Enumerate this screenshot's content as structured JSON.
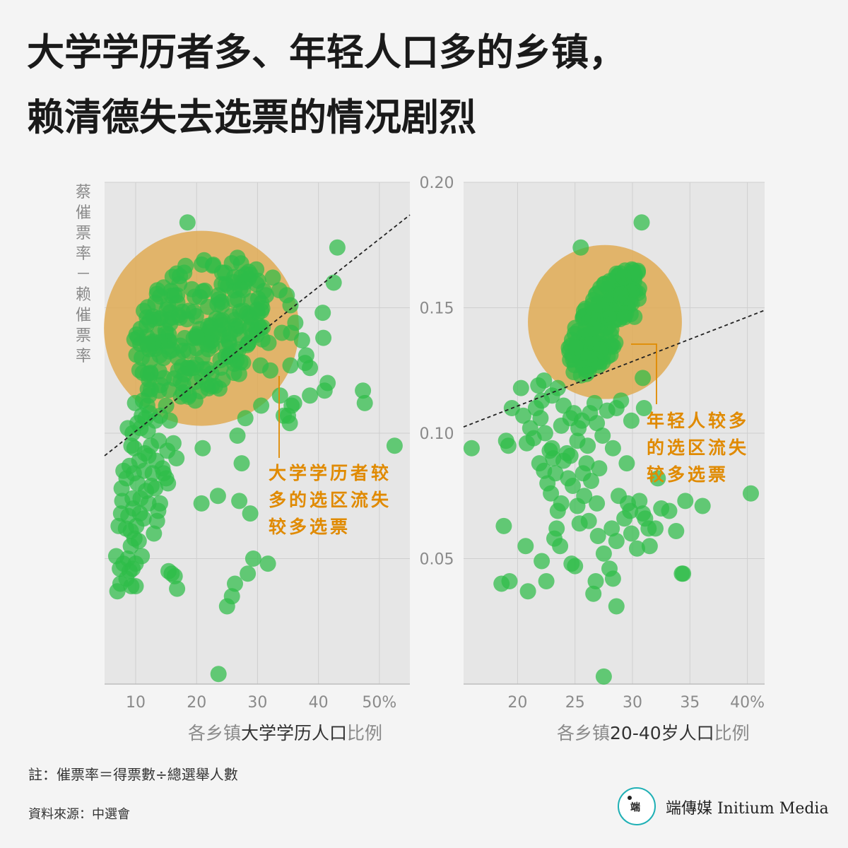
{
  "title": {
    "line1": "大学学历者多、年轻人口多的乡镇，",
    "line2": "赖清德失去选票的情况剧烈"
  },
  "y_axis_label": "蔡催票率－赖催票率",
  "annotations": {
    "left": "大学学历者较多的选区流失较多选票",
    "right": "年轻人较多的选区流失较多选票"
  },
  "footnote": "註：催票率＝得票數÷總選舉人數",
  "source": "資料來源：中選會",
  "brand": {
    "logo_text": "端",
    "name": "端傳媒 Initium Media"
  },
  "colors": {
    "background": "#f4f4f4",
    "plot_bg": "#e6e6e6",
    "point_green": "#2ebd48",
    "highlight_circle": "#e0a74b",
    "annotation": "#e08a00",
    "trend_line": "#222222"
  },
  "chart_data": [
    {
      "type": "scatter",
      "x_label_gray_prefix": "各乡镇",
      "x_label_dark": "大学学历人口",
      "x_label_gray_suffix": "比例",
      "xticks": [
        "10",
        "20",
        "30",
        "40",
        "50%"
      ],
      "xlim": [
        4.9,
        55
      ],
      "ylim": [
        0,
        0.2
      ],
      "yticks": [
        "0.20",
        "0.15",
        "0.10",
        "0.05"
      ],
      "grid": true,
      "trend_line": {
        "x": [
          4.9,
          55
        ],
        "y": [
          0.091,
          0.187
        ]
      },
      "highlight": {
        "cx": 20.8,
        "cy": 0.1418,
        "r_x_units": 16.0
      },
      "points": [
        [
          18.5,
          0.184
        ],
        [
          43.1,
          0.174
        ],
        [
          42.5,
          0.16
        ],
        [
          40.8,
          0.138
        ],
        [
          47.3,
          0.117
        ],
        [
          47.6,
          0.112
        ],
        [
          52.5,
          0.095
        ],
        [
          41.5,
          0.12
        ],
        [
          41.0,
          0.117
        ],
        [
          33.7,
          0.115
        ],
        [
          35.6,
          0.111
        ],
        [
          35.3,
          0.104
        ],
        [
          35.0,
          0.107
        ],
        [
          36.0,
          0.112
        ],
        [
          34.3,
          0.107
        ],
        [
          32.1,
          0.125
        ],
        [
          37.8,
          0.128
        ],
        [
          38.6,
          0.126
        ],
        [
          38.0,
          0.131
        ],
        [
          35.4,
          0.127
        ],
        [
          35.5,
          0.14
        ],
        [
          34.0,
          0.14
        ],
        [
          37.3,
          0.137
        ],
        [
          40.7,
          0.148
        ],
        [
          38.6,
          0.115
        ],
        [
          30.5,
          0.127
        ],
        [
          31.8,
          0.136
        ],
        [
          31.4,
          0.155
        ],
        [
          35.4,
          0.151
        ],
        [
          34.8,
          0.155
        ],
        [
          36.2,
          0.144
        ],
        [
          33.6,
          0.157
        ],
        [
          32.5,
          0.162
        ],
        [
          28.0,
          0.106
        ],
        [
          26.7,
          0.099
        ],
        [
          27.4,
          0.088
        ],
        [
          21.0,
          0.094
        ],
        [
          30.6,
          0.111
        ],
        [
          20.8,
          0.072
        ],
        [
          23.5,
          0.075
        ],
        [
          27.0,
          0.073
        ],
        [
          28.8,
          0.068
        ],
        [
          29.3,
          0.05
        ],
        [
          31.7,
          0.048
        ],
        [
          28.4,
          0.044
        ],
        [
          26.3,
          0.04
        ],
        [
          25.8,
          0.035
        ],
        [
          25.0,
          0.031
        ],
        [
          23.6,
          0.004
        ],
        [
          16.4,
          0.043
        ],
        [
          16.8,
          0.038
        ],
        [
          15.4,
          0.045
        ],
        [
          15.9,
          0.044
        ],
        [
          13.0,
          0.06
        ],
        [
          13.5,
          0.065
        ],
        [
          14.0,
          0.072
        ],
        [
          13.2,
          0.078
        ],
        [
          14.6,
          0.084
        ],
        [
          15.0,
          0.082
        ],
        [
          16.7,
          0.09
        ],
        [
          16.2,
          0.096
        ],
        [
          15.2,
          0.093
        ],
        [
          13.8,
          0.097
        ],
        [
          12.0,
          0.101
        ],
        [
          11.6,
          0.106
        ],
        [
          11.9,
          0.111
        ],
        [
          11.0,
          0.107
        ],
        [
          10.3,
          0.104
        ],
        [
          9.5,
          0.1
        ],
        [
          9.8,
          0.094
        ],
        [
          10.6,
          0.089
        ],
        [
          11.5,
          0.092
        ],
        [
          12.5,
          0.095
        ],
        [
          12.8,
          0.084
        ],
        [
          11.7,
          0.077
        ],
        [
          10.7,
          0.068
        ],
        [
          10.1,
          0.063
        ],
        [
          9.2,
          0.061
        ],
        [
          9.8,
          0.058
        ],
        [
          10.5,
          0.057
        ],
        [
          11.0,
          0.051
        ],
        [
          10.0,
          0.048
        ],
        [
          9.5,
          0.046
        ],
        [
          8.5,
          0.042
        ],
        [
          7.5,
          0.04
        ],
        [
          7.0,
          0.037
        ],
        [
          6.8,
          0.051
        ],
        [
          7.4,
          0.046
        ],
        [
          8.0,
          0.048
        ],
        [
          9.0,
          0.045
        ],
        [
          8.7,
          0.05
        ],
        [
          9.2,
          0.055
        ],
        [
          8.8,
          0.067
        ],
        [
          7.8,
          0.073
        ],
        [
          8.5,
          0.082
        ],
        [
          9.0,
          0.087
        ],
        [
          9.3,
          0.095
        ],
        [
          8.7,
          0.102
        ],
        [
          9.9,
          0.112
        ],
        [
          11.2,
          0.113
        ],
        [
          12.3,
          0.108
        ],
        [
          13.2,
          0.105
        ],
        [
          14.0,
          0.107
        ],
        [
          15.0,
          0.111
        ],
        [
          15.6,
          0.105
        ],
        [
          12.2,
          0.115
        ],
        [
          10.8,
          0.102
        ],
        [
          11.4,
          0.085
        ],
        [
          12.6,
          0.079
        ],
        [
          14.4,
          0.086
        ],
        [
          8.0,
          0.085
        ],
        [
          7.6,
          0.068
        ],
        [
          7.2,
          0.063
        ],
        [
          9.3,
          0.039
        ],
        [
          10.0,
          0.039
        ],
        [
          7.7,
          0.078
        ],
        [
          12.1,
          0.072
        ],
        [
          13.7,
          0.069
        ],
        [
          15.3,
          0.08
        ],
        [
          10.3,
          0.08
        ],
        [
          9.5,
          0.074
        ],
        [
          11.3,
          0.066
        ],
        [
          9.6,
          0.07
        ],
        [
          10.8,
          0.074
        ],
        [
          8.4,
          0.062
        ],
        [
          13.4,
          0.089
        ],
        [
          12.1,
          0.091
        ],
        [
          9.7,
          0.084
        ]
      ],
      "cluster_seed": 11
    },
    {
      "type": "scatter",
      "x_label_gray_prefix": "各乡镇",
      "x_label_dark": "20-40岁人口",
      "x_label_gray_suffix": "比例",
      "xticks": [
        "20",
        "25",
        "30",
        "35",
        "40%"
      ],
      "xlim": [
        15.3,
        41.5
      ],
      "ylim": [
        0,
        0.2
      ],
      "yticks": [
        "0.20",
        "0.15",
        "0.10",
        "0.05"
      ],
      "grid": true,
      "trend_line": {
        "x": [
          15.3,
          41.5
        ],
        "y": [
          0.1025,
          0.149
        ]
      },
      "highlight": {
        "cx": 27.6,
        "cy": 0.1443,
        "r_x_units": 6.7
      },
      "points": [
        [
          30.8,
          0.184
        ],
        [
          25.5,
          0.174
        ],
        [
          30.9,
          0.122
        ],
        [
          31.0,
          0.11
        ],
        [
          29.9,
          0.105
        ],
        [
          40.3,
          0.076
        ],
        [
          36.1,
          0.071
        ],
        [
          34.6,
          0.073
        ],
        [
          33.8,
          0.061
        ],
        [
          34.3,
          0.044
        ],
        [
          31.5,
          0.055
        ],
        [
          32.0,
          0.062
        ],
        [
          32.5,
          0.07
        ],
        [
          30.9,
          0.068
        ],
        [
          31.4,
          0.062
        ],
        [
          29.8,
          0.069
        ],
        [
          29.3,
          0.066
        ],
        [
          29.9,
          0.06
        ],
        [
          30.4,
          0.054
        ],
        [
          28.8,
          0.075
        ],
        [
          29.6,
          0.072
        ],
        [
          28.2,
          0.062
        ],
        [
          28.6,
          0.057
        ],
        [
          28.0,
          0.046
        ],
        [
          28.3,
          0.042
        ],
        [
          28.6,
          0.031
        ],
        [
          26.6,
          0.036
        ],
        [
          26.8,
          0.041
        ],
        [
          27.5,
          0.052
        ],
        [
          27.0,
          0.059
        ],
        [
          26.2,
          0.065
        ],
        [
          25.2,
          0.071
        ],
        [
          25.8,
          0.075
        ],
        [
          26.9,
          0.072
        ],
        [
          25.0,
          0.047
        ],
        [
          24.7,
          0.048
        ],
        [
          23.7,
          0.055
        ],
        [
          23.2,
          0.058
        ],
        [
          23.4,
          0.062
        ],
        [
          22.1,
          0.049
        ],
        [
          22.5,
          0.041
        ],
        [
          20.9,
          0.037
        ],
        [
          19.3,
          0.041
        ],
        [
          18.6,
          0.04
        ],
        [
          18.8,
          0.063
        ],
        [
          20.7,
          0.055
        ],
        [
          27.5,
          0.003
        ],
        [
          16.0,
          0.094
        ],
        [
          19.2,
          0.095
        ],
        [
          19.0,
          0.097
        ],
        [
          20.8,
          0.096
        ],
        [
          19.5,
          0.11
        ],
        [
          20.3,
          0.118
        ],
        [
          21.1,
          0.102
        ],
        [
          21.6,
          0.11
        ],
        [
          22.1,
          0.113
        ],
        [
          21.8,
          0.119
        ],
        [
          22.3,
          0.121
        ],
        [
          23.0,
          0.115
        ],
        [
          23.5,
          0.118
        ],
        [
          24.0,
          0.111
        ],
        [
          24.6,
          0.106
        ],
        [
          25.3,
          0.102
        ],
        [
          25.6,
          0.105
        ],
        [
          26.3,
          0.108
        ],
        [
          26.9,
          0.104
        ],
        [
          27.4,
          0.099
        ],
        [
          28.3,
          0.094
        ],
        [
          28.6,
          0.11
        ],
        [
          29.0,
          0.113
        ],
        [
          22.4,
          0.1
        ],
        [
          23.1,
          0.09
        ],
        [
          22.3,
          0.085
        ],
        [
          22.6,
          0.08
        ],
        [
          22.9,
          0.076
        ],
        [
          23.8,
          0.072
        ],
        [
          23.5,
          0.069
        ],
        [
          24.8,
          0.079
        ],
        [
          25.7,
          0.084
        ],
        [
          26.0,
          0.088
        ],
        [
          24.3,
          0.092
        ],
        [
          25.2,
          0.097
        ],
        [
          26.1,
          0.095
        ],
        [
          24.0,
          0.089
        ],
        [
          24.4,
          0.082
        ],
        [
          23.3,
          0.084
        ],
        [
          22.8,
          0.093
        ],
        [
          23.8,
          0.103
        ],
        [
          24.9,
          0.108
        ],
        [
          22.0,
          0.106
        ],
        [
          20.5,
          0.107
        ],
        [
          21.4,
          0.098
        ],
        [
          23.0,
          0.094
        ],
        [
          26.4,
          0.081
        ],
        [
          27.1,
          0.086
        ],
        [
          25.4,
          0.064
        ],
        [
          24.6,
          0.091
        ],
        [
          21.9,
          0.088
        ],
        [
          26.7,
          0.112
        ],
        [
          27.8,
          0.109
        ],
        [
          29.5,
          0.088
        ],
        [
          32.2,
          0.082
        ],
        [
          30.6,
          0.073
        ],
        [
          31.1,
          0.066
        ],
        [
          33.2,
          0.069
        ],
        [
          34.4,
          0.044
        ]
      ],
      "cluster_seed": 29
    }
  ]
}
